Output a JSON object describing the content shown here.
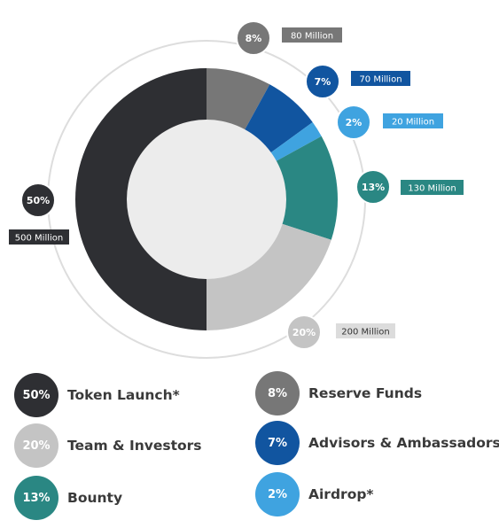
{
  "chart_data": {
    "type": "pie",
    "title": "",
    "slices": [
      {
        "label": "Token Launch*",
        "percent_label": "50%",
        "amount_label": "500 Million",
        "value": 500,
        "color": "#2e2f33"
      },
      {
        "label": "Reserve Funds",
        "percent_label": "8%",
        "amount_label": "80 Million",
        "value": 80,
        "color": "#777777"
      },
      {
        "label": "Advisors & Ambassadors",
        "percent_label": "7%",
        "amount_label": "70 Million",
        "value": 70,
        "color": "#1155a0"
      },
      {
        "label": "Airdrop*",
        "percent_label": "2%",
        "amount_label": "20 Million",
        "value": 20,
        "color": "#3fa3e0"
      },
      {
        "label": "Bounty",
        "percent_label": "13%",
        "amount_label": "130 Million",
        "value": 130,
        "color": "#2a8783"
      },
      {
        "label": "Team & Investors",
        "percent_label": "20%",
        "amount_label": "200 Million",
        "value": 200,
        "color": "#c4c4c4"
      }
    ],
    "legend_placement": "bottom"
  },
  "colors": {
    "center_fill": "#ececec",
    "outer_ring": "#dddddd",
    "reserve_badge": "#777777",
    "team_badge": "#c4c4c4",
    "tag_text_light": "#ffffff",
    "tag_text_dark": "#333333"
  }
}
